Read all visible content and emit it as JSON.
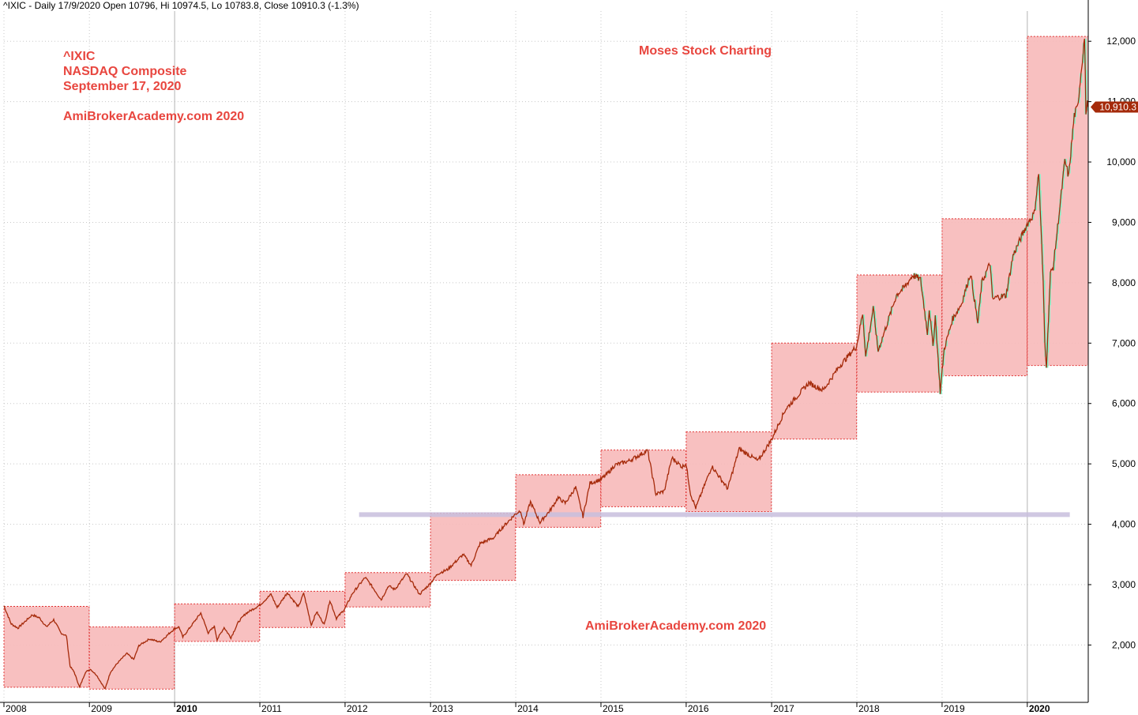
{
  "header": {
    "text": "^IXIC - Daily 17/9/2020 Open 10796, Hi 10974.5, Lo 10783.8, Close 10910.3 (-1.3%)"
  },
  "annotations": {
    "symbol": "^IXIC",
    "name": "NASDAQ Composite",
    "date": "September 17, 2020",
    "site_top": "AmiBrokerAcademy.com  2020",
    "brand": "Moses Stock Charting",
    "site_bottom": "AmiBrokerAcademy.com  2020"
  },
  "colors": {
    "price_line": "#a52a0a",
    "range_box_fill": "#f7b9b9",
    "range_box_border": "#e03030",
    "swing_fill": "#7ff5c8",
    "support_line": "#c8bedd",
    "annotation_text": "#e8463f",
    "last_price_bg": "#a52a0a"
  },
  "chart_data": {
    "type": "line",
    "title": "^IXIC - Daily 17/9/2020 Open 10796, Hi 10974.5, Lo 10783.8, Close 10910.3 (-1.3%)",
    "xlabel": "",
    "ylabel": "",
    "x_range": [
      "2008-01-01",
      "2020-09-18"
    ],
    "ylim": [
      1050,
      12500
    ],
    "y_scale": "linear",
    "yticks": [
      {
        "value": 2000,
        "label": "2,000"
      },
      {
        "value": 3000,
        "label": "3,000"
      },
      {
        "value": 4000,
        "label": "4,000"
      },
      {
        "value": 5000,
        "label": "5,000"
      },
      {
        "value": 6000,
        "label": "6,000"
      },
      {
        "value": 7000,
        "label": "7,000"
      },
      {
        "value": 8000,
        "label": "8,000"
      },
      {
        "value": 9000,
        "label": "9,000"
      },
      {
        "value": 10000,
        "label": "10,000"
      },
      {
        "value": 11000,
        "label": "11,000"
      },
      {
        "value": 12000,
        "label": "12,000"
      }
    ],
    "xticks": [
      {
        "value": "2008-01-01",
        "label": "2008",
        "bold": false
      },
      {
        "value": "2009-01-01",
        "label": "2009",
        "bold": false
      },
      {
        "value": "2010-01-01",
        "label": "2010",
        "bold": true
      },
      {
        "value": "2011-01-01",
        "label": "2011",
        "bold": false
      },
      {
        "value": "2012-01-01",
        "label": "2012",
        "bold": false
      },
      {
        "value": "2013-01-01",
        "label": "2013",
        "bold": false
      },
      {
        "value": "2014-01-01",
        "label": "2014",
        "bold": false
      },
      {
        "value": "2015-01-01",
        "label": "2015",
        "bold": false
      },
      {
        "value": "2016-01-01",
        "label": "2016",
        "bold": false
      },
      {
        "value": "2017-01-01",
        "label": "2017",
        "bold": false
      },
      {
        "value": "2018-01-01",
        "label": "2018",
        "bold": false
      },
      {
        "value": "2019-01-01",
        "label": "2019",
        "bold": false
      },
      {
        "value": "2020-01-01",
        "label": "2020",
        "bold": true
      }
    ],
    "grid": true,
    "legend": "none",
    "last_price": {
      "value": 10910.3,
      "label": "10,910.3"
    },
    "support_line": {
      "value": 4160,
      "x_start": "2012-03-01",
      "x_end": "2020-07-01"
    },
    "yearly_ranges": [
      {
        "year": 2008,
        "start": "2008-01-01",
        "end": "2008-12-31",
        "high": 2640,
        "low": 1300
      },
      {
        "year": 2009,
        "start": "2009-01-01",
        "end": "2009-12-31",
        "high": 2300,
        "low": 1270
      },
      {
        "year": 2010,
        "start": "2010-01-01",
        "end": "2010-12-31",
        "high": 2680,
        "low": 2060
      },
      {
        "year": 2011,
        "start": "2011-01-01",
        "end": "2011-12-31",
        "high": 2890,
        "low": 2290
      },
      {
        "year": 2012,
        "start": "2012-01-01",
        "end": "2012-12-31",
        "high": 3200,
        "low": 2630
      },
      {
        "year": 2013,
        "start": "2013-01-01",
        "end": "2013-12-31",
        "high": 4180,
        "low": 3070
      },
      {
        "year": 2014,
        "start": "2014-01-01",
        "end": "2014-12-31",
        "high": 4820,
        "low": 3950
      },
      {
        "year": 2015,
        "start": "2015-01-01",
        "end": "2015-12-31",
        "high": 5230,
        "low": 4290
      },
      {
        "year": 2016,
        "start": "2016-01-01",
        "end": "2016-12-31",
        "high": 5530,
        "low": 4210
      },
      {
        "year": 2017,
        "start": "2017-01-01",
        "end": "2017-12-31",
        "high": 7000,
        "low": 5410
      },
      {
        "year": 2018,
        "start": "2018-01-01",
        "end": "2018-12-31",
        "high": 8130,
        "low": 6190
      },
      {
        "year": 2019,
        "start": "2019-01-01",
        "end": "2019-12-31",
        "high": 9060,
        "low": 6460
      },
      {
        "year": 2020,
        "start": "2020-01-01",
        "end": "2020-09-18",
        "high": 12080,
        "low": 6630
      }
    ],
    "series": [
      {
        "type": "line",
        "points": [
          [
            "2008-01-01",
            2650
          ],
          [
            "2008-02-01",
            2350
          ],
          [
            "2008-03-01",
            2280
          ],
          [
            "2008-05-01",
            2500
          ],
          [
            "2008-06-01",
            2450
          ],
          [
            "2008-07-01",
            2300
          ],
          [
            "2008-08-01",
            2420
          ],
          [
            "2008-09-01",
            2200
          ],
          [
            "2008-09-25",
            2150
          ],
          [
            "2008-10-10",
            1650
          ],
          [
            "2008-10-28",
            1550
          ],
          [
            "2008-11-20",
            1300
          ],
          [
            "2008-12-15",
            1550
          ],
          [
            "2009-01-05",
            1600
          ],
          [
            "2009-02-01",
            1500
          ],
          [
            "2009-03-09",
            1270
          ],
          [
            "2009-04-01",
            1550
          ],
          [
            "2009-05-01",
            1700
          ],
          [
            "2009-06-10",
            1860
          ],
          [
            "2009-07-10",
            1760
          ],
          [
            "2009-08-01",
            1990
          ],
          [
            "2009-09-15",
            2100
          ],
          [
            "2009-10-30",
            2050
          ],
          [
            "2009-12-31",
            2270
          ],
          [
            "2010-01-20",
            2300
          ],
          [
            "2010-02-05",
            2130
          ],
          [
            "2010-04-23",
            2530
          ],
          [
            "2010-05-25",
            2200
          ],
          [
            "2010-06-20",
            2310
          ],
          [
            "2010-07-02",
            2090
          ],
          [
            "2010-08-01",
            2290
          ],
          [
            "2010-08-30",
            2120
          ],
          [
            "2010-10-01",
            2380
          ],
          [
            "2010-11-01",
            2520
          ],
          [
            "2010-12-31",
            2660
          ],
          [
            "2011-02-18",
            2840
          ],
          [
            "2011-03-16",
            2620
          ],
          [
            "2011-04-29",
            2870
          ],
          [
            "2011-06-15",
            2630
          ],
          [
            "2011-07-08",
            2860
          ],
          [
            "2011-08-09",
            2330
          ],
          [
            "2011-09-01",
            2550
          ],
          [
            "2011-10-04",
            2340
          ],
          [
            "2011-10-28",
            2740
          ],
          [
            "2011-11-25",
            2440
          ],
          [
            "2011-12-31",
            2600
          ],
          [
            "2012-02-01",
            2850
          ],
          [
            "2012-03-27",
            3120
          ],
          [
            "2012-04-20",
            3000
          ],
          [
            "2012-06-04",
            2750
          ],
          [
            "2012-07-05",
            2980
          ],
          [
            "2012-08-01",
            2920
          ],
          [
            "2012-09-21",
            3180
          ],
          [
            "2012-11-15",
            2840
          ],
          [
            "2012-12-31",
            3020
          ],
          [
            "2013-02-01",
            3180
          ],
          [
            "2013-03-15",
            3250
          ],
          [
            "2013-05-21",
            3500
          ],
          [
            "2013-06-24",
            3320
          ],
          [
            "2013-08-01",
            3680
          ],
          [
            "2013-09-30",
            3780
          ],
          [
            "2013-11-01",
            3930
          ],
          [
            "2013-12-31",
            4170
          ],
          [
            "2014-01-22",
            4230
          ],
          [
            "2014-02-04",
            4000
          ],
          [
            "2014-03-05",
            4370
          ],
          [
            "2014-04-15",
            4030
          ],
          [
            "2014-06-01",
            4250
          ],
          [
            "2014-07-01",
            4440
          ],
          [
            "2014-08-01",
            4350
          ],
          [
            "2014-09-15",
            4610
          ],
          [
            "2014-10-16",
            4130
          ],
          [
            "2014-11-15",
            4680
          ],
          [
            "2014-12-31",
            4740
          ],
          [
            "2015-02-01",
            4850
          ],
          [
            "2015-03-01",
            4980
          ],
          [
            "2015-05-01",
            5050
          ],
          [
            "2015-07-20",
            5220
          ],
          [
            "2015-08-24",
            4500
          ],
          [
            "2015-09-29",
            4550
          ],
          [
            "2015-11-01",
            5100
          ],
          [
            "2015-12-15",
            4950
          ],
          [
            "2015-12-31",
            5010
          ],
          [
            "2016-01-20",
            4500
          ],
          [
            "2016-02-11",
            4270
          ],
          [
            "2016-04-20",
            4960
          ],
          [
            "2016-06-27",
            4590
          ],
          [
            "2016-08-15",
            5250
          ],
          [
            "2016-11-04",
            5050
          ],
          [
            "2016-12-31",
            5400
          ],
          [
            "2017-03-01",
            5900
          ],
          [
            "2017-06-09",
            6340
          ],
          [
            "2017-08-10",
            6220
          ],
          [
            "2017-10-15",
            6600
          ],
          [
            "2017-12-31",
            6950
          ],
          [
            "2018-01-26",
            7500
          ],
          [
            "2018-02-08",
            6780
          ],
          [
            "2018-03-12",
            7580
          ],
          [
            "2018-04-02",
            6870
          ],
          [
            "2018-06-20",
            7800
          ],
          [
            "2018-07-25",
            7930
          ],
          [
            "2018-08-29",
            8130
          ],
          [
            "2018-10-01",
            8050
          ],
          [
            "2018-10-30",
            7170
          ],
          [
            "2018-11-07",
            7570
          ],
          [
            "2018-11-23",
            6950
          ],
          [
            "2018-12-03",
            7450
          ],
          [
            "2018-12-24",
            6190
          ],
          [
            "2019-01-10",
            6900
          ],
          [
            "2019-02-15",
            7400
          ],
          [
            "2019-03-25",
            7650
          ],
          [
            "2019-05-03",
            8160
          ],
          [
            "2019-06-03",
            7330
          ],
          [
            "2019-06-20",
            8000
          ],
          [
            "2019-07-26",
            8330
          ],
          [
            "2019-08-05",
            7720
          ],
          [
            "2019-08-23",
            7760
          ],
          [
            "2019-10-02",
            7790
          ],
          [
            "2019-11-01",
            8450
          ],
          [
            "2019-12-31",
            8970
          ],
          [
            "2020-01-31",
            9150
          ],
          [
            "2020-02-19",
            9820
          ],
          [
            "2020-03-09",
            8000
          ],
          [
            "2020-03-16",
            7000
          ],
          [
            "2020-03-23",
            6630
          ],
          [
            "2020-04-09",
            8150
          ],
          [
            "2020-04-21",
            8260
          ],
          [
            "2020-05-04",
            8710
          ],
          [
            "2020-06-10",
            10020
          ],
          [
            "2020-06-26",
            9760
          ],
          [
            "2020-07-20",
            10770
          ],
          [
            "2020-08-03",
            10900
          ],
          [
            "2020-09-02",
            12060
          ],
          [
            "2020-09-08",
            10850
          ],
          [
            "2020-09-11",
            10850
          ],
          [
            "2020-09-16",
            11050
          ],
          [
            "2020-09-17",
            10910
          ]
        ]
      }
    ]
  }
}
